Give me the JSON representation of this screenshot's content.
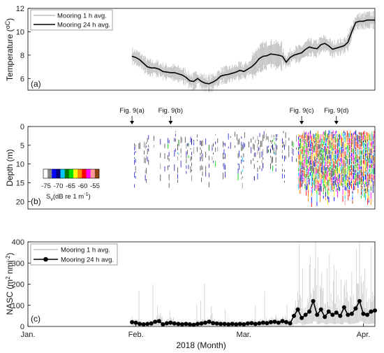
{
  "chart_data": [
    {
      "id": "a",
      "type": "line",
      "panel_label": "(a)",
      "ylabel": "Temperature (",
      "ylabel_unit": "oC",
      "ylabel_end": ")",
      "xlim": [
        0,
        90
      ],
      "ylim": [
        5,
        12
      ],
      "yticks": [
        6,
        8,
        10,
        12
      ],
      "legend": {
        "position": "top-left",
        "entries": [
          "Mooring 1 h avg.",
          "Mooring 24 h avg."
        ]
      },
      "series": [
        {
          "name": "Mooring 24 h avg.",
          "color": "#000000",
          "x": [
            27,
            28,
            29,
            30,
            31,
            32,
            33,
            34,
            35,
            36,
            37,
            38,
            39,
            40,
            41,
            42,
            43,
            44,
            45,
            46,
            47,
            48,
            49,
            50,
            51,
            52,
            53,
            54,
            55,
            56,
            57,
            58,
            59,
            60,
            61,
            62,
            63,
            64,
            65,
            66,
            67,
            68,
            69,
            70,
            71,
            72,
            73,
            74,
            75,
            76,
            77,
            78,
            79,
            80,
            81,
            82,
            83,
            84,
            85,
            86,
            87,
            88,
            89,
            90
          ],
          "y": [
            7.9,
            7.8,
            7.6,
            7.3,
            7.0,
            6.9,
            6.9,
            6.8,
            6.6,
            6.55,
            6.5,
            6.5,
            6.4,
            6.3,
            6.1,
            5.8,
            5.75,
            6.0,
            5.75,
            5.6,
            5.55,
            5.7,
            5.9,
            6.2,
            6.3,
            6.35,
            6.45,
            6.55,
            6.7,
            6.6,
            6.8,
            7.0,
            7.3,
            7.7,
            7.9,
            7.95,
            8.1,
            8.05,
            8.0,
            7.9,
            7.4,
            7.8,
            8.0,
            8.1,
            8.2,
            8.5,
            8.7,
            8.6,
            8.55,
            8.9,
            9.0,
            8.8,
            8.5,
            8.6,
            8.7,
            8.8,
            9.1,
            10.0,
            10.8,
            10.9,
            10.9,
            11.0,
            11.0,
            11.0
          ]
        },
        {
          "name": "Mooring 1 h avg.",
          "color": "#b8b8b8"
        }
      ]
    },
    {
      "id": "b",
      "type": "heatmap",
      "panel_label": "(b)",
      "ylabel": "Depth (m)",
      "xlim": [
        0,
        90
      ],
      "ylim": [
        0,
        22
      ],
      "yticks": [
        0,
        5,
        10,
        15,
        20
      ],
      "colorbar": {
        "ticks": [
          "-75",
          "-70",
          "-65",
          "-60",
          "-55"
        ],
        "label_pre": "S",
        "label_sub": "v",
        "label_mid": "(dB re 1 m",
        "label_sup": "-1",
        "label_post": ")",
        "colors": [
          "#ffffff",
          "#888888",
          "#0000ff",
          "#00007a",
          "#00c8ff",
          "#007a00",
          "#00e100",
          "#ffff00",
          "#ff8800",
          "#ff0000",
          "#ff00ff",
          "#ff9999",
          "#8b4513"
        ]
      },
      "annotations": [
        {
          "label": "Fig. 9(a)",
          "x": 27
        },
        {
          "label": "Fig. 9(b)",
          "x": 37
        },
        {
          "label": "Fig. 9(c)",
          "x": 71
        },
        {
          "label": "Fig. 9(d)",
          "x": 80
        }
      ]
    },
    {
      "id": "c",
      "type": "line",
      "panel_label": "(c)",
      "ylabel": "NASC (m",
      "ylabel_sup1": "2",
      "ylabel_mid": " nmi",
      "ylabel_sup2": "-2",
      "ylabel_end": ")",
      "xlim": [
        0,
        90
      ],
      "ylim": [
        0,
        400
      ],
      "yticks": [
        0,
        100,
        200,
        300,
        400
      ],
      "xlabel": "2018 (Month)",
      "xticks": [
        {
          "label": "Jan.",
          "x": 0
        },
        {
          "label": "Feb.",
          "x": 28
        },
        {
          "label": "Mar.",
          "x": 56
        },
        {
          "label": "Apr.",
          "x": 87
        }
      ],
      "legend": {
        "position": "top-left",
        "entries": [
          "Mooring 1 h avg.",
          "Mooring 24 h avg."
        ]
      },
      "series": [
        {
          "name": "Mooring 24 h avg.",
          "color": "#000000",
          "x": [
            27,
            28,
            29,
            30,
            31,
            32,
            33,
            34,
            35,
            36,
            37,
            38,
            39,
            40,
            41,
            42,
            43,
            44,
            45,
            46,
            47,
            48,
            49,
            50,
            51,
            52,
            53,
            54,
            55,
            56,
            57,
            58,
            59,
            60,
            61,
            62,
            63,
            64,
            65,
            66,
            67,
            68,
            69,
            70,
            71,
            72,
            73,
            74,
            75,
            76,
            77,
            78,
            79,
            80,
            81,
            82,
            83,
            84,
            85,
            86,
            87,
            88,
            89,
            90
          ],
          "y": [
            20,
            18,
            12,
            10,
            12,
            14,
            22,
            25,
            10,
            15,
            18,
            14,
            12,
            10,
            12,
            10,
            8,
            12,
            14,
            18,
            22,
            16,
            14,
            12,
            12,
            10,
            12,
            10,
            12,
            10,
            14,
            16,
            12,
            15,
            18,
            16,
            20,
            22,
            18,
            25,
            20,
            15,
            50,
            80,
            40,
            55,
            70,
            120,
            55,
            80,
            45,
            70,
            55,
            65,
            50,
            90,
            55,
            60,
            85,
            120,
            60,
            55,
            70,
            75
          ]
        },
        {
          "name": "Mooring 1 h avg.",
          "color": "#c4c4c4"
        }
      ]
    }
  ]
}
